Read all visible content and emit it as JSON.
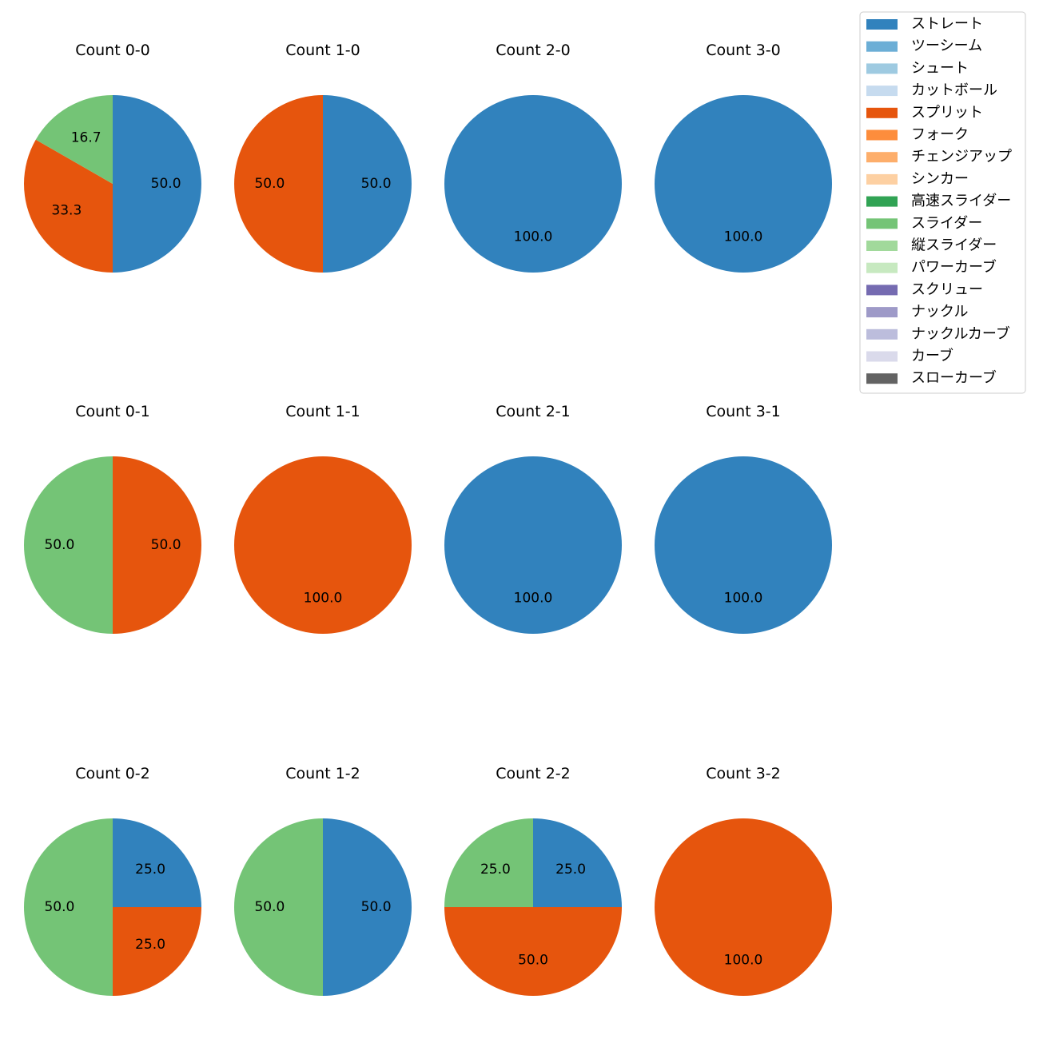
{
  "chart_data": {
    "type": "pie",
    "charts": [
      {
        "title": "Count 0-0",
        "slices": [
          {
            "pitch": "ストレート",
            "value": 50.0
          },
          {
            "pitch": "スプリット",
            "value": 33.3
          },
          {
            "pitch": "スライダー",
            "value": 16.7
          }
        ]
      },
      {
        "title": "Count 1-0",
        "slices": [
          {
            "pitch": "ストレート",
            "value": 50.0
          },
          {
            "pitch": "スプリット",
            "value": 50.0
          }
        ]
      },
      {
        "title": "Count 2-0",
        "slices": [
          {
            "pitch": "ストレート",
            "value": 100.0
          }
        ]
      },
      {
        "title": "Count 3-0",
        "slices": [
          {
            "pitch": "ストレート",
            "value": 100.0
          }
        ]
      },
      {
        "title": "Count 0-1",
        "slices": [
          {
            "pitch": "スプリット",
            "value": 50.0
          },
          {
            "pitch": "スライダー",
            "value": 50.0
          }
        ]
      },
      {
        "title": "Count 1-1",
        "slices": [
          {
            "pitch": "スプリット",
            "value": 100.0
          }
        ]
      },
      {
        "title": "Count 2-1",
        "slices": [
          {
            "pitch": "ストレート",
            "value": 100.0
          }
        ]
      },
      {
        "title": "Count 3-1",
        "slices": [
          {
            "pitch": "ストレート",
            "value": 100.0
          }
        ]
      },
      {
        "title": "Count 0-2",
        "slices": [
          {
            "pitch": "ストレート",
            "value": 25.0
          },
          {
            "pitch": "スプリット",
            "value": 25.0
          },
          {
            "pitch": "スライダー",
            "value": 50.0
          }
        ]
      },
      {
        "title": "Count 1-2",
        "slices": [
          {
            "pitch": "ストレート",
            "value": 50.0
          },
          {
            "pitch": "スライダー",
            "value": 50.0
          }
        ]
      },
      {
        "title": "Count 2-2",
        "slices": [
          {
            "pitch": "ストレート",
            "value": 25.0
          },
          {
            "pitch": "スプリット",
            "value": 50.0
          },
          {
            "pitch": "スライダー",
            "value": 25.0
          }
        ]
      },
      {
        "title": "Count 3-2",
        "slices": [
          {
            "pitch": "スプリット",
            "value": 100.0
          }
        ]
      }
    ],
    "legend": [
      {
        "label": "ストレート",
        "color": "#3182bd"
      },
      {
        "label": "ツーシーム",
        "color": "#6baed6"
      },
      {
        "label": "シュート",
        "color": "#9ecae1"
      },
      {
        "label": "カットボール",
        "color": "#c6dbef"
      },
      {
        "label": "スプリット",
        "color": "#e6550d"
      },
      {
        "label": "フォーク",
        "color": "#fd8d3c"
      },
      {
        "label": "チェンジアップ",
        "color": "#fdae6b"
      },
      {
        "label": "シンカー",
        "color": "#fdd0a2"
      },
      {
        "label": "高速スライダー",
        "color": "#31a354"
      },
      {
        "label": "スライダー",
        "color": "#74c476"
      },
      {
        "label": "縦スライダー",
        "color": "#a1d99b"
      },
      {
        "label": "パワーカーブ",
        "color": "#c7e9c0"
      },
      {
        "label": "スクリュー",
        "color": "#756bb1"
      },
      {
        "label": "ナックル",
        "color": "#9e9ac8"
      },
      {
        "label": "ナックルカーブ",
        "color": "#bcbddc"
      },
      {
        "label": "カーブ",
        "color": "#dadaeb"
      },
      {
        "label": "スローカーブ",
        "color": "#636363"
      }
    ],
    "legend_position": "top-right"
  }
}
